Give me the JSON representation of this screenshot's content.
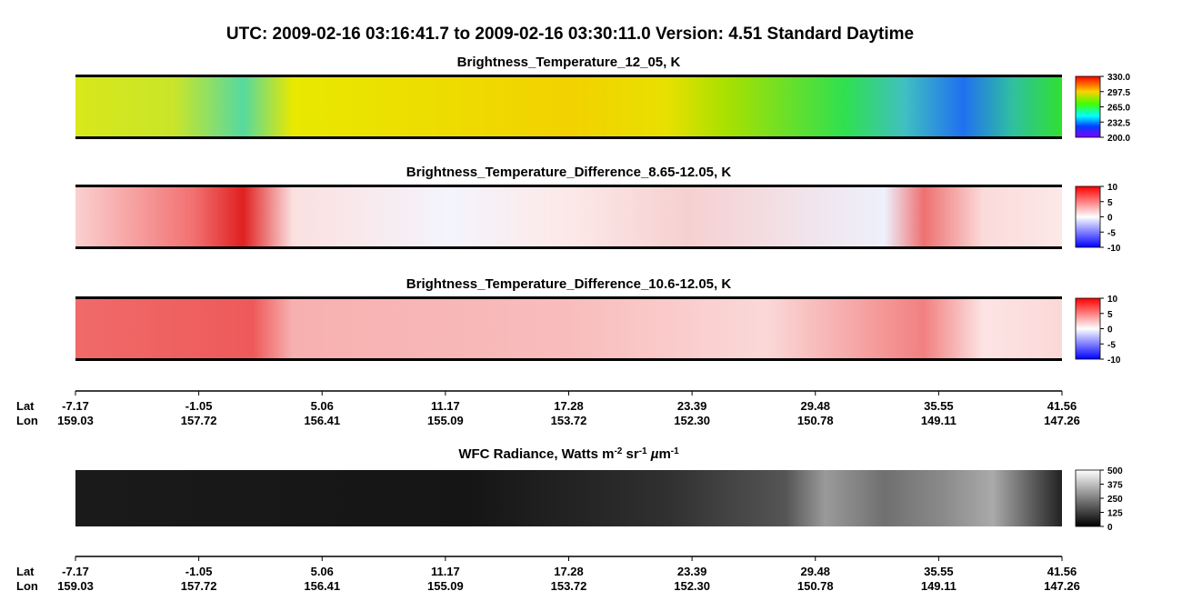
{
  "title": "UTC:  2009-02-16   03:16:41.7  to  2009-02-16   03:30:11.0    Version: 4.51  Standard Daytime",
  "panels": [
    {
      "title": "Brightness_Temperature_12_05, K",
      "colorbar": [
        "330.0",
        "297.5",
        "265.0",
        "232.5",
        "200.0"
      ]
    },
    {
      "title": "Brightness_Temperature_Difference_8.65-12.05, K",
      "colorbar": [
        "10",
        "5",
        "0",
        "-5",
        "-10"
      ]
    },
    {
      "title": "Brightness_Temperature_Difference_10.6-12.05, K",
      "colorbar": [
        "10",
        "5",
        "0",
        "-5",
        "-10"
      ]
    },
    {
      "title_parts": [
        "WFC Radiance, Watts m",
        "-2",
        " sr",
        "-1",
        " µ",
        "m",
        "-1"
      ],
      "superscript": [
        false,
        true,
        false,
        true,
        false,
        false,
        true
      ],
      "colorbar": [
        "500",
        "375",
        "250",
        "125",
        "0"
      ]
    }
  ],
  "axes": [
    {
      "lat_label": "Lat",
      "lon_label": "Lon",
      "lat": [
        "-7.17",
        "-1.05",
        "5.06",
        "11.17",
        "17.28",
        "23.39",
        "29.48",
        "35.55",
        "41.56"
      ],
      "lon": [
        "159.03",
        "157.72",
        "156.41",
        "155.09",
        "153.72",
        "152.30",
        "150.78",
        "149.11",
        "147.26"
      ]
    },
    {
      "lat_label": "Lat",
      "lon_label": "Lon",
      "lat": [
        "-7.17",
        "-1.05",
        "5.06",
        "11.17",
        "17.28",
        "23.39",
        "29.48",
        "35.55",
        "41.56"
      ],
      "lon": [
        "159.03",
        "157.72",
        "156.41",
        "155.09",
        "153.72",
        "152.30",
        "150.78",
        "149.11",
        "147.26"
      ]
    }
  ]
}
